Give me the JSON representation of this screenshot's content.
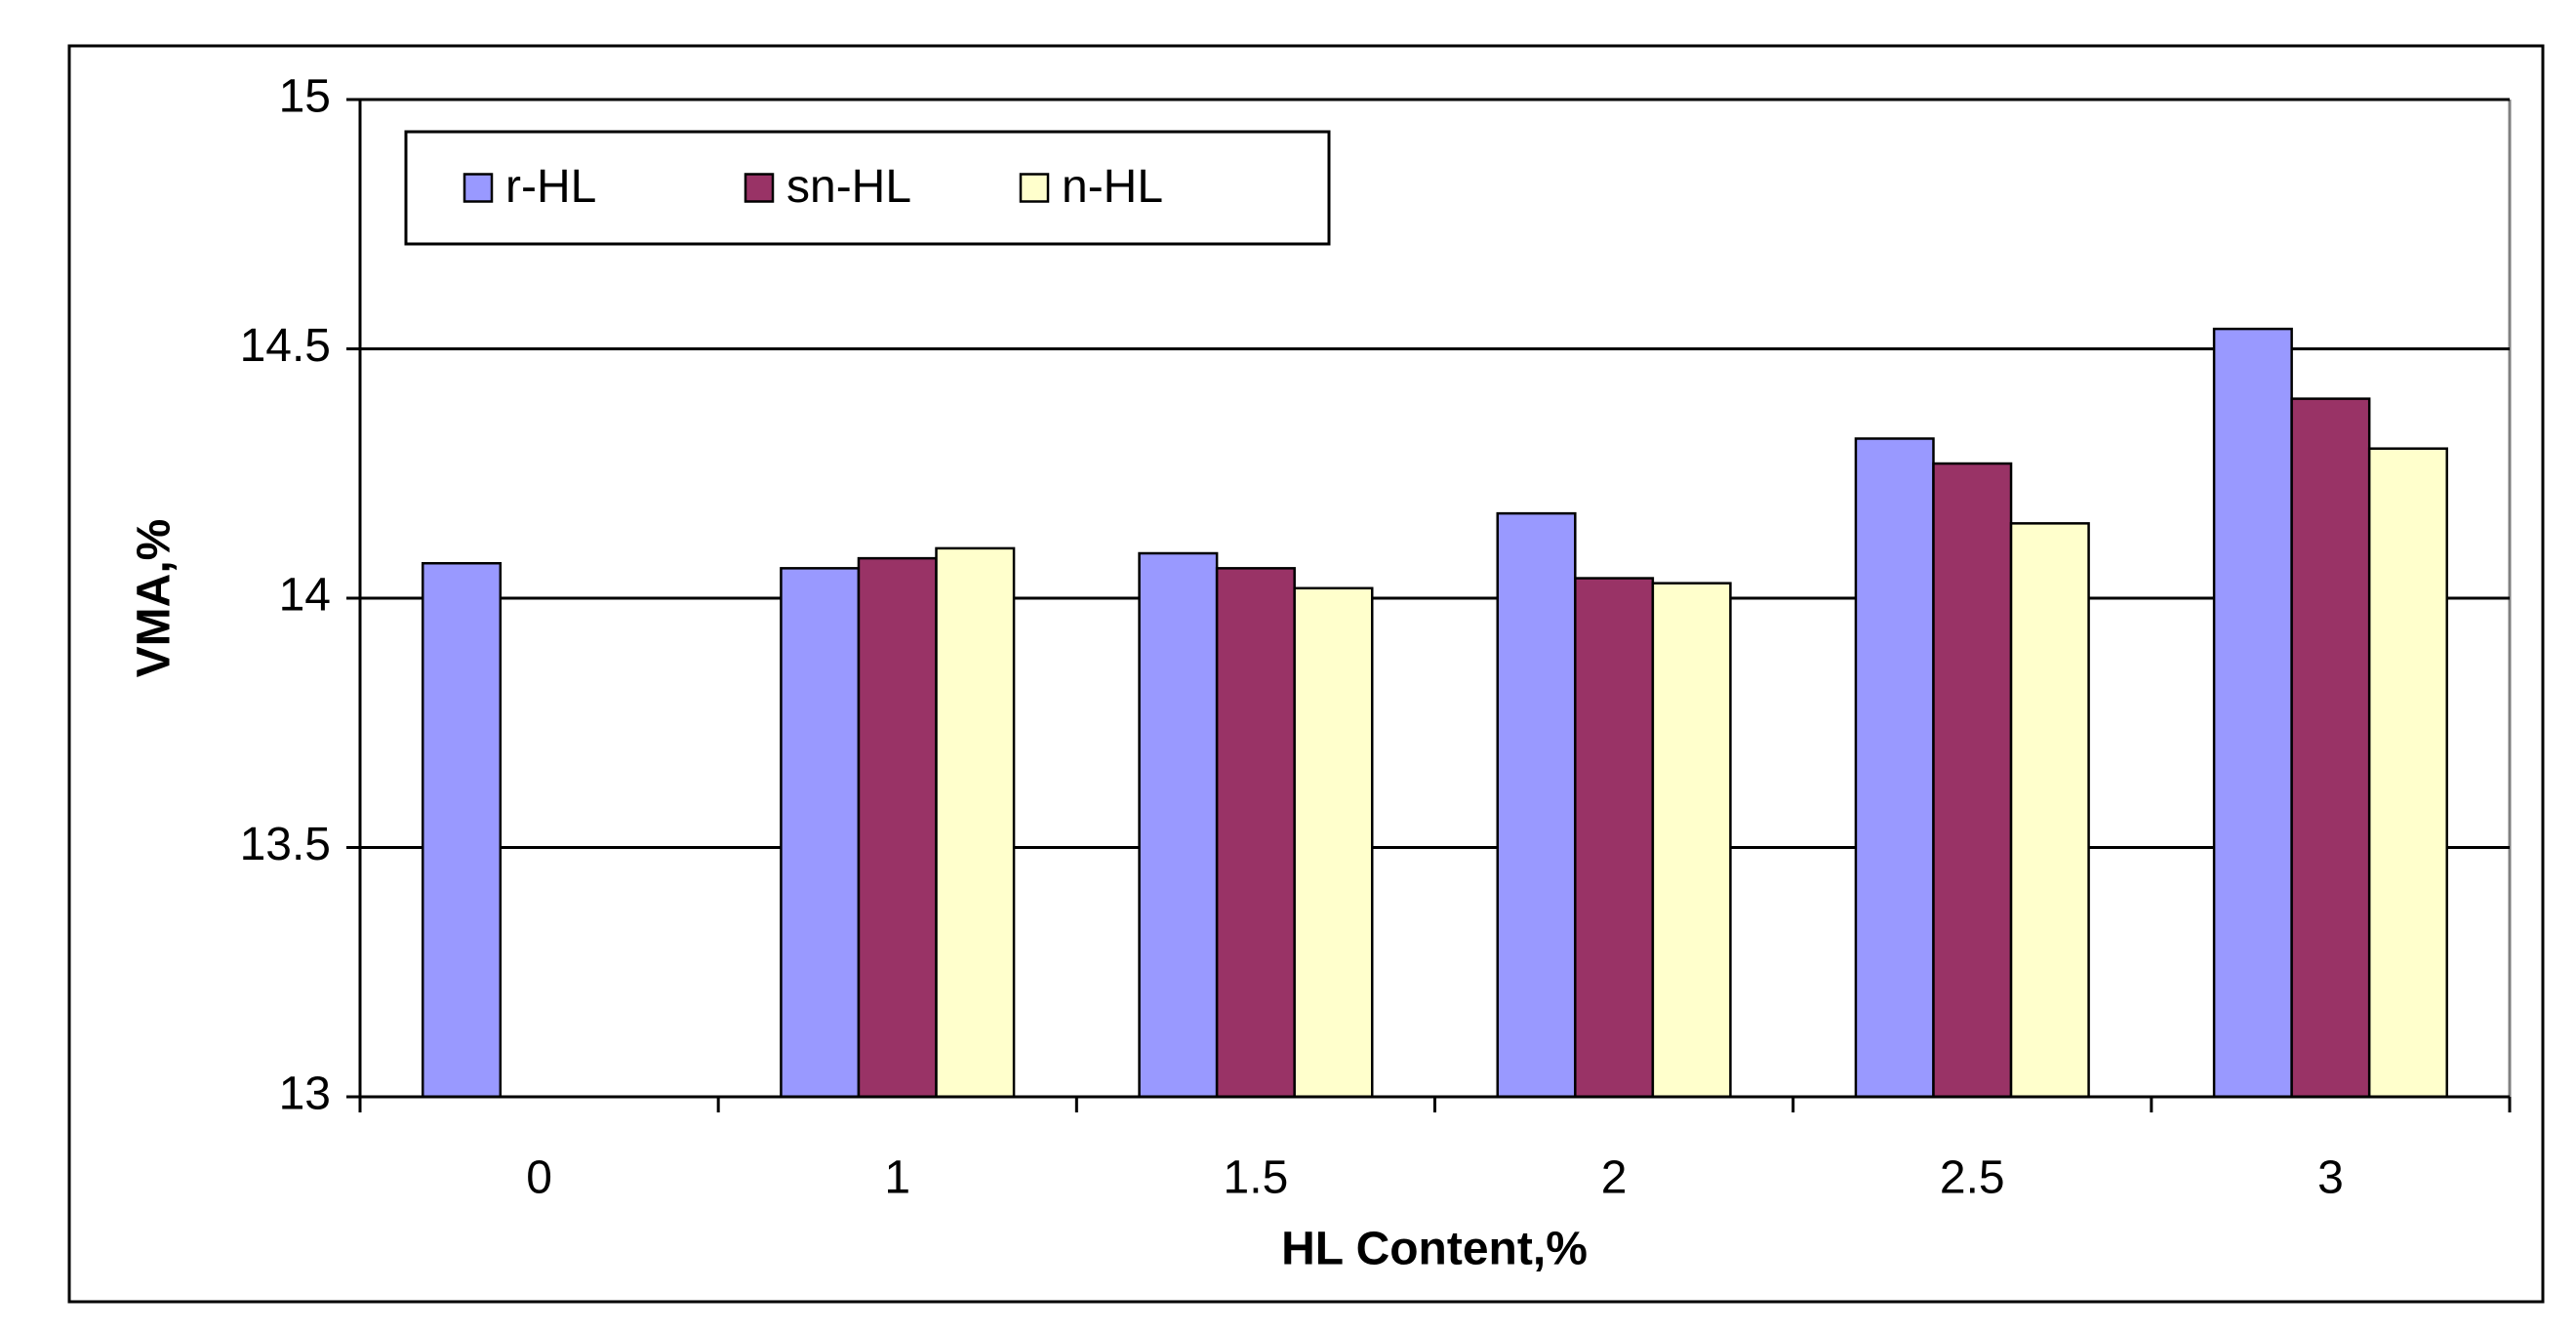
{
  "chart_data": {
    "type": "bar",
    "x_label": "HL Content,%",
    "y_label": "VMA,%",
    "categories": [
      "0",
      "1",
      "1.5",
      "2",
      "2.5",
      "3"
    ],
    "series": [
      {
        "name": "r-HL",
        "color": "#9999ff",
        "values": [
          14.07,
          14.06,
          14.09,
          14.17,
          14.32,
          14.54
        ]
      },
      {
        "name": "sn-HL",
        "color": "#993366",
        "values": [
          null,
          14.08,
          14.06,
          14.04,
          14.27,
          14.4
        ]
      },
      {
        "name": "n-HL",
        "color": "#ffffcc",
        "values": [
          null,
          14.1,
          14.02,
          14.03,
          14.15,
          14.3
        ]
      }
    ],
    "ylim": [
      13,
      15
    ],
    "yticks": [
      13,
      13.5,
      14,
      14.5,
      15
    ],
    "grid": true,
    "legend": "top-left"
  }
}
